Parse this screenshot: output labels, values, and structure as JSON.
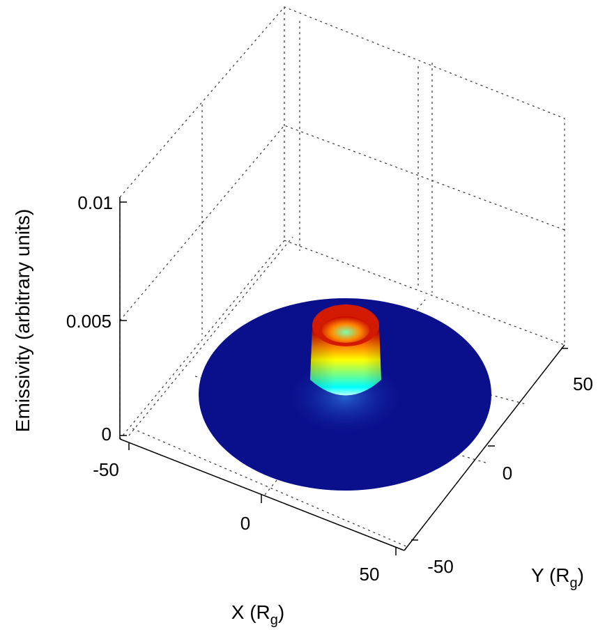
{
  "chart_data": {
    "type": "surface",
    "xlabel": "X (R_g)",
    "ylabel": "Y (R_g)",
    "zlabel": "Emissivity (arbitrary units)",
    "x_ticks": [
      "-50",
      "0",
      "50"
    ],
    "y_ticks": [
      "-50",
      "0",
      "50"
    ],
    "z_ticks": [
      "0",
      "0.005",
      "0.01"
    ],
    "xlim": [
      -60,
      60
    ],
    "ylim": [
      -60,
      60
    ],
    "zlim": [
      0,
      0.01
    ],
    "grid": true,
    "colormap": "jet",
    "surface": {
      "disk_radius": 50,
      "ring_radius": 10,
      "ring_peak_emissivity": 0.0045,
      "base_emissivity": 0
    }
  },
  "colors": {
    "background": "#ffffff",
    "disk": "#0a0f8c",
    "colormap_stops": [
      "#00007f",
      "#0000ff",
      "#00ffff",
      "#7fff7f",
      "#ffff00",
      "#ff7f00",
      "#ff0000",
      "#7f0000"
    ]
  }
}
